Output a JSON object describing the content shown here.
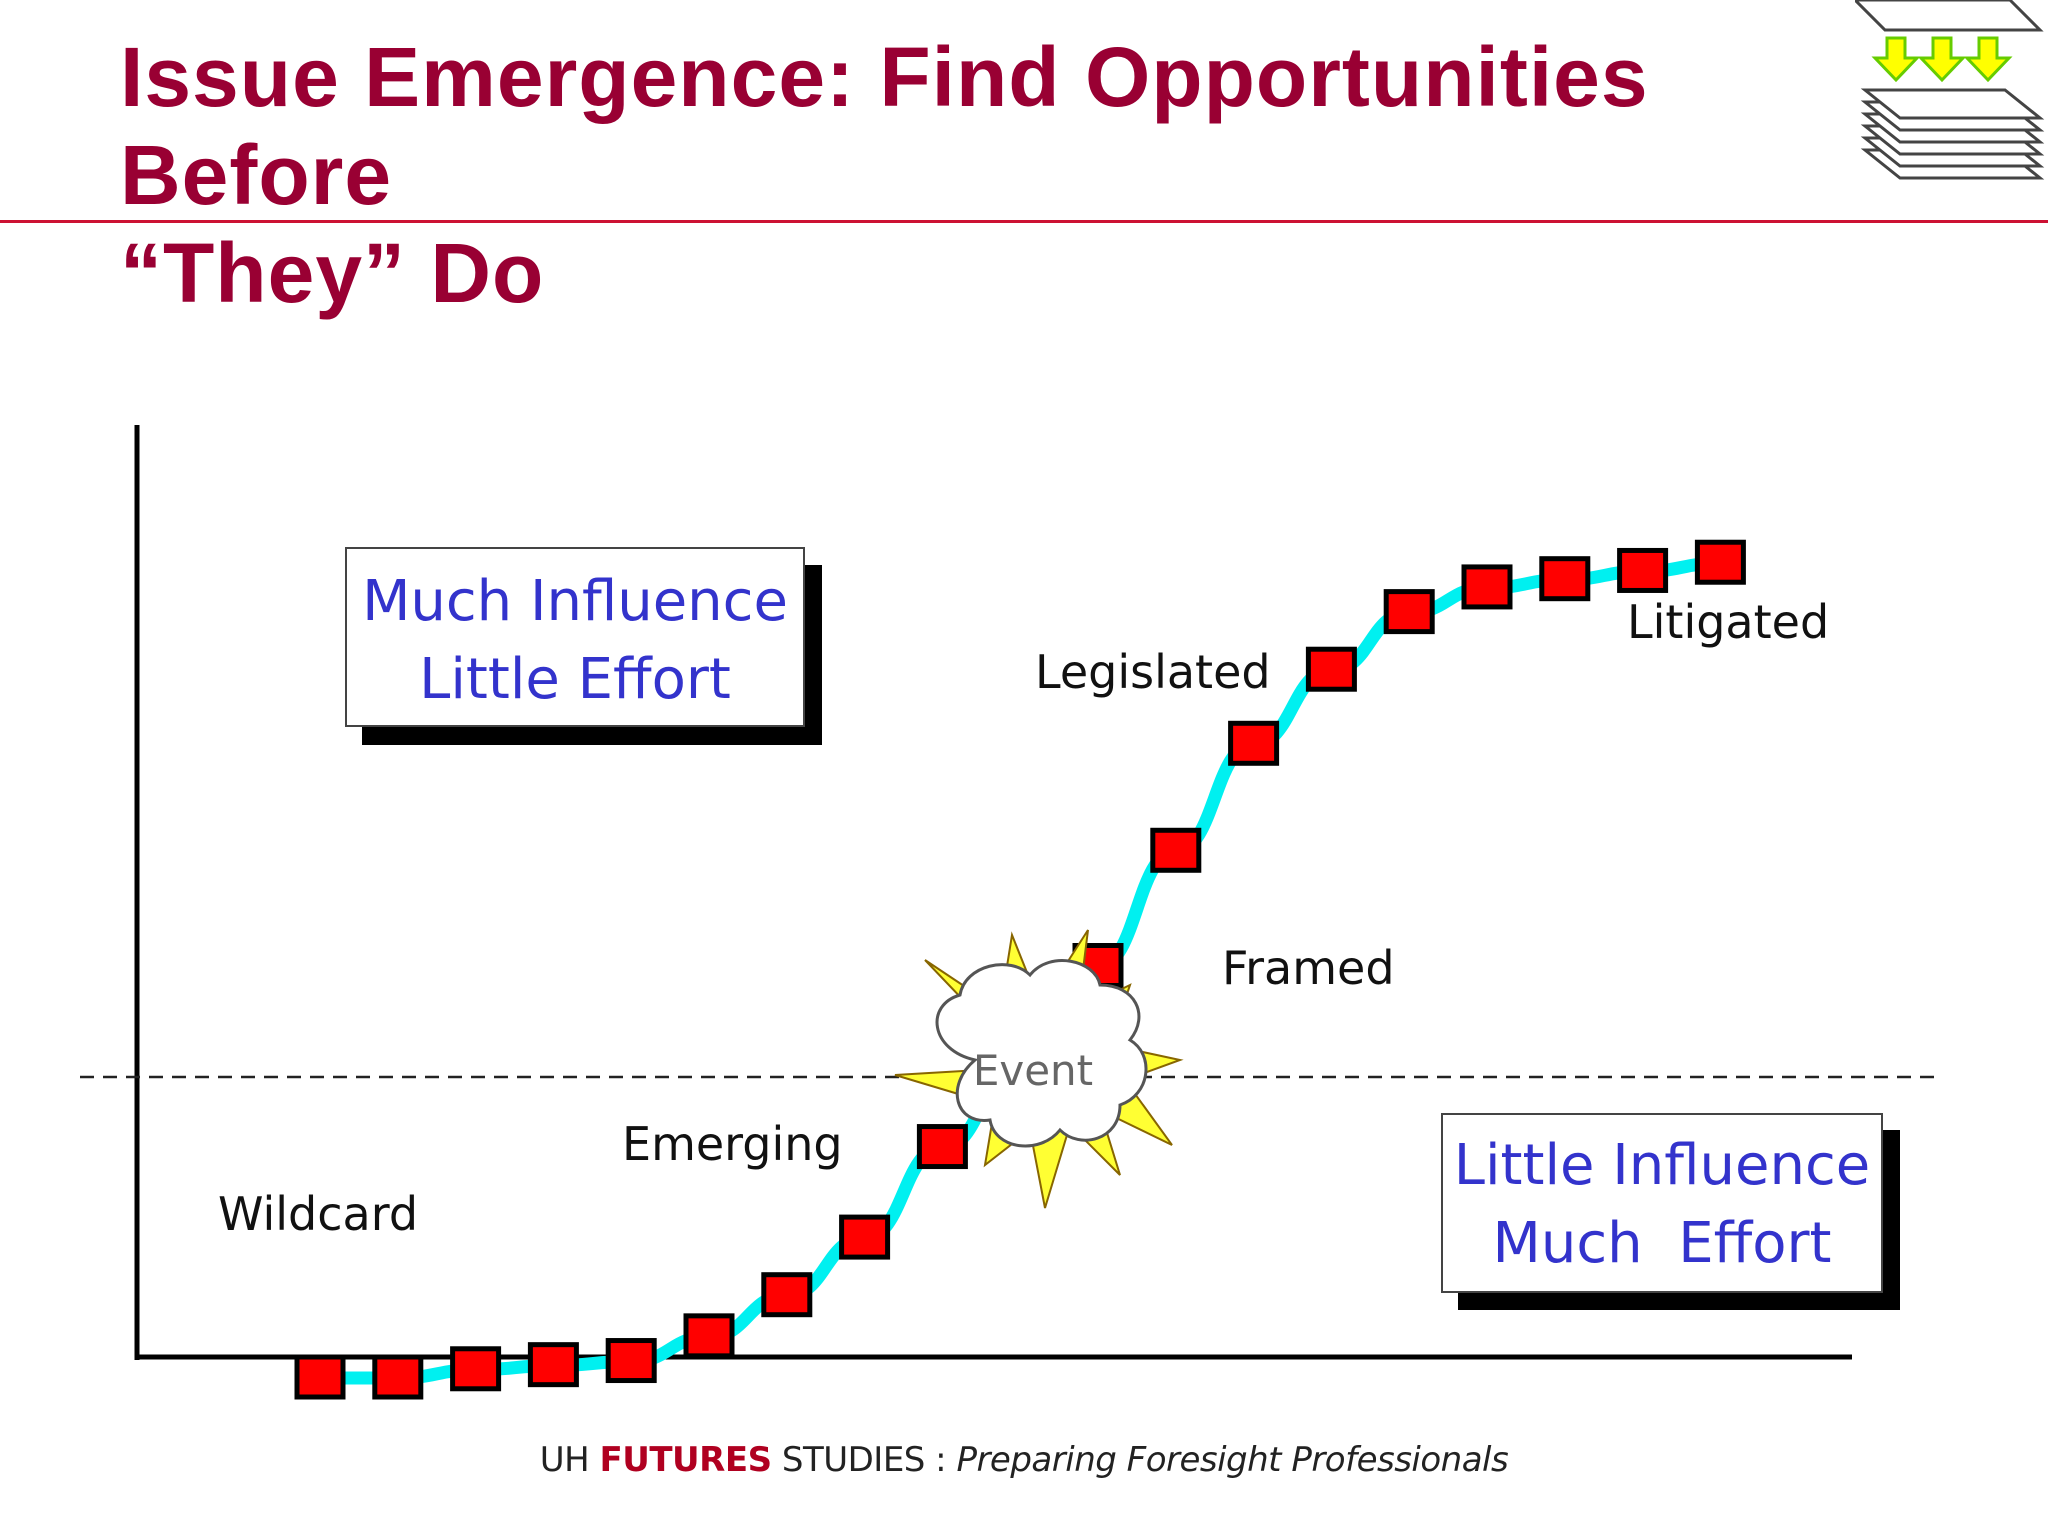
{
  "title": {
    "line1": "Issue Emergence: Find Opportunities Before",
    "line2": "“They” Do"
  },
  "footer": {
    "prefix": "UH ",
    "brand": "FUTURES",
    "suffix": " STUDIES : ",
    "tagline": "Preparing Foresight Professionals"
  },
  "quadrants": {
    "upper_left": {
      "line1": "Much Influence",
      "line2": "Little Effort"
    },
    "lower_right": {
      "line1": "Little Influence",
      "line2": "Much  Effort"
    }
  },
  "stages": {
    "wildcard": "Wildcard",
    "emerging": "Emerging",
    "event": "Event",
    "framed": "Framed",
    "legislated": "Legislated",
    "litigated": "Litigated"
  },
  "colors": {
    "title": "#990033",
    "curve": "#00f0f0",
    "marker": "#ff0000",
    "box_text": "#3333cc",
    "rule": "#cc1133"
  },
  "icons": [
    "stacked-pages-icon",
    "down-arrows-icon",
    "explosion-cloud-icon"
  ],
  "curve_points": [
    [
      0.0,
      0.0
    ],
    [
      1,
      0.0
    ],
    [
      2,
      0.01
    ],
    [
      3,
      0.015
    ],
    [
      4,
      0.02
    ],
    [
      5,
      0.05
    ],
    [
      6,
      0.1
    ],
    [
      7,
      0.17
    ],
    [
      8,
      0.28
    ],
    [
      9,
      0.38
    ],
    [
      10,
      0.5
    ],
    [
      11,
      0.64
    ],
    [
      12,
      0.77
    ],
    [
      13,
      0.86
    ],
    [
      14,
      0.93
    ],
    [
      15,
      0.96
    ],
    [
      16,
      0.97
    ],
    [
      17,
      0.98
    ],
    [
      18,
      0.99
    ]
  ],
  "hidden_marker_indices": [
    9
  ]
}
